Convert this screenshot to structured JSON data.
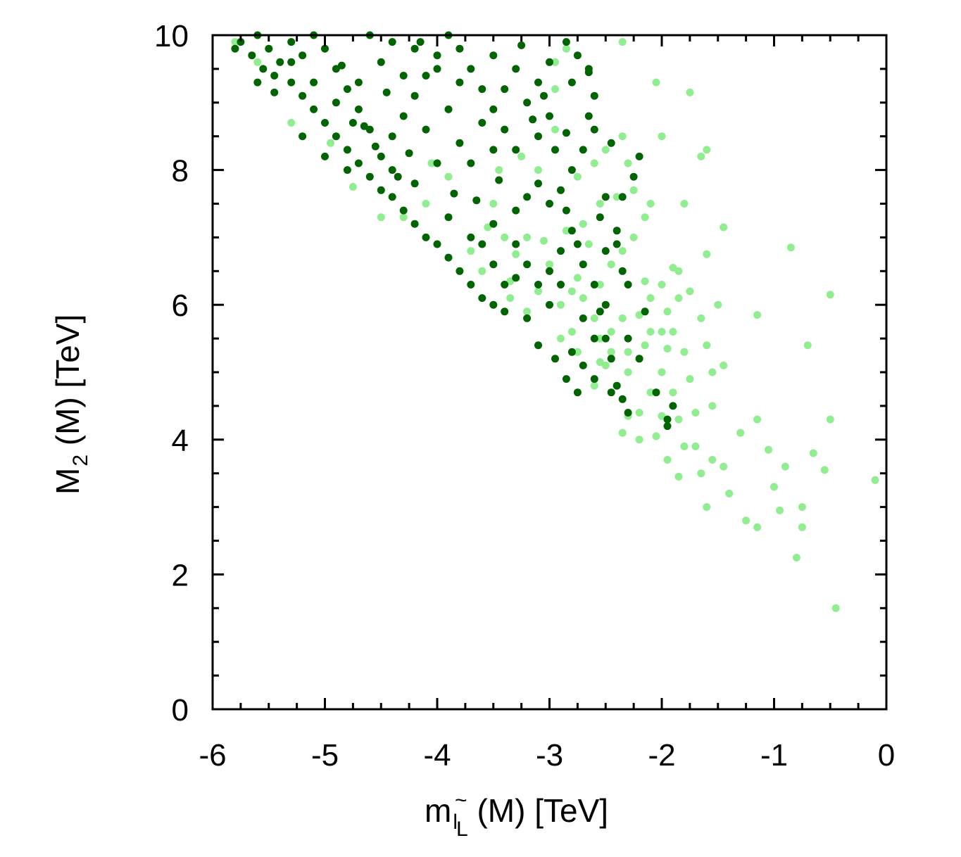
{
  "chart_data": {
    "type": "scatter",
    "title": "",
    "xlabel": {
      "main": "m",
      "sub": "l",
      "tilde": "~",
      "subsub": "L",
      "suffix": " (M)  [TeV]"
    },
    "ylabel": {
      "main": "M",
      "sub": "2",
      "suffix": " (M)  [TeV]"
    },
    "xlim": [
      -6,
      0
    ],
    "ylim": [
      0,
      10
    ],
    "x_ticks": [
      -6,
      -5,
      -4,
      -3,
      -2,
      -1,
      0
    ],
    "x_tick_labels": [
      "-6",
      "-5",
      "-4",
      "-3",
      "-2",
      "-1",
      "0"
    ],
    "y_ticks": [
      0,
      2,
      4,
      6,
      8,
      10
    ],
    "y_tick_labels": [
      "0",
      "2",
      "4",
      "6",
      "8",
      "10"
    ],
    "grid": false,
    "series": [
      {
        "color": "#90ee90",
        "points": [
          [
            -0.45,
            1.5
          ],
          [
            -0.8,
            2.25
          ],
          [
            -0.75,
            2.7
          ],
          [
            -0.75,
            3.0
          ],
          [
            -0.95,
            2.95
          ],
          [
            -1.0,
            3.3
          ],
          [
            -0.9,
            3.6
          ],
          [
            -0.55,
            3.55
          ],
          [
            -0.65,
            3.8
          ],
          [
            -0.1,
            3.4
          ],
          [
            -0.5,
            4.3
          ],
          [
            -0.7,
            5.4
          ],
          [
            -0.85,
            6.85
          ],
          [
            -0.5,
            6.15
          ],
          [
            -1.15,
            5.85
          ],
          [
            -1.15,
            4.3
          ],
          [
            -1.3,
            4.1
          ],
          [
            -1.05,
            3.85
          ],
          [
            -1.15,
            2.7
          ],
          [
            -1.25,
            2.8
          ],
          [
            -1.4,
            3.2
          ],
          [
            -1.45,
            3.6
          ],
          [
            -1.55,
            3.7
          ],
          [
            -1.65,
            3.5
          ],
          [
            -1.6,
            3.0
          ],
          [
            -1.7,
            3.9
          ],
          [
            -1.8,
            3.9
          ],
          [
            -1.55,
            4.5
          ],
          [
            -1.7,
            4.4
          ],
          [
            -1.55,
            5.0
          ],
          [
            -1.45,
            5.1
          ],
          [
            -1.6,
            5.4
          ],
          [
            -1.65,
            5.8
          ],
          [
            -1.5,
            6.0
          ],
          [
            -1.6,
            6.75
          ],
          [
            -1.45,
            7.15
          ],
          [
            -1.75,
            6.2
          ],
          [
            -1.85,
            6.5
          ],
          [
            -1.95,
            5.9
          ],
          [
            -1.85,
            6.1
          ],
          [
            -2.0,
            6.3
          ],
          [
            -2.1,
            6.1
          ],
          [
            -2.0,
            5.6
          ],
          [
            -2.15,
            5.4
          ],
          [
            -2.2,
            5.2
          ],
          [
            -2.0,
            5.0
          ],
          [
            -2.1,
            4.7
          ],
          [
            -2.2,
            4.4
          ],
          [
            -1.9,
            4.7
          ],
          [
            -1.85,
            4.3
          ],
          [
            -2.0,
            4.35
          ],
          [
            -2.05,
            4.05
          ],
          [
            -2.2,
            4.0
          ],
          [
            -2.3,
            4.35
          ],
          [
            -2.35,
            4.1
          ],
          [
            -1.95,
            3.7
          ],
          [
            -1.85,
            3.45
          ],
          [
            -1.75,
            4.9
          ],
          [
            -1.8,
            5.3
          ],
          [
            -2.3,
            5.0
          ],
          [
            -2.4,
            4.8
          ],
          [
            -2.5,
            5.1
          ],
          [
            -2.55,
            5.5
          ],
          [
            -2.6,
            5.8
          ],
          [
            -2.7,
            6.1
          ],
          [
            -2.75,
            6.4
          ],
          [
            -2.8,
            6.2
          ],
          [
            -2.9,
            6.0
          ],
          [
            -2.65,
            6.9
          ],
          [
            -2.55,
            6.3
          ],
          [
            -2.45,
            6.6
          ],
          [
            -2.35,
            6.8
          ],
          [
            -2.25,
            7.0
          ],
          [
            -2.15,
            7.3
          ],
          [
            -2.1,
            7.5
          ],
          [
            -2.25,
            7.7
          ],
          [
            -2.4,
            7.6
          ],
          [
            -2.55,
            7.5
          ],
          [
            -2.7,
            7.2
          ],
          [
            -2.85,
            7.1
          ],
          [
            -2.75,
            7.9
          ],
          [
            -2.6,
            8.1
          ],
          [
            -2.5,
            8.3
          ],
          [
            -2.35,
            8.5
          ],
          [
            -2.0,
            8.5
          ],
          [
            -1.8,
            7.5
          ],
          [
            -1.65,
            8.2
          ],
          [
            -1.6,
            8.3
          ],
          [
            -1.75,
            9.15
          ],
          [
            -2.05,
            9.3
          ],
          [
            -2.3,
            8.1
          ],
          [
            -2.5,
            6.0
          ],
          [
            -2.45,
            5.6
          ],
          [
            -2.3,
            5.3
          ],
          [
            -2.1,
            5.6
          ],
          [
            -1.9,
            5.6
          ],
          [
            -2.35,
            9.9
          ],
          [
            -2.95,
            8.6
          ],
          [
            -3.0,
            6.6
          ],
          [
            -3.1,
            6.2
          ],
          [
            -3.2,
            5.9
          ],
          [
            -3.35,
            6.35
          ],
          [
            -3.6,
            6.5
          ],
          [
            -3.7,
            6.8
          ],
          [
            -3.5,
            7.5
          ],
          [
            -3.45,
            8.0
          ],
          [
            -3.25,
            8.2
          ],
          [
            -3.1,
            8.0
          ],
          [
            -3.4,
            7.0
          ],
          [
            -3.2,
            7.0
          ],
          [
            -4.1,
            7.5
          ],
          [
            -4.3,
            7.3
          ],
          [
            -4.5,
            7.3
          ],
          [
            -4.75,
            7.75
          ],
          [
            -4.95,
            8.4
          ],
          [
            -5.3,
            8.7
          ],
          [
            -5.6,
            9.6
          ],
          [
            -5.8,
            9.9
          ],
          [
            -2.85,
            9.8
          ],
          [
            -2.95,
            9.2
          ],
          [
            -3.35,
            6.1
          ],
          [
            -2.9,
            5.5
          ],
          [
            -2.75,
            5.3
          ],
          [
            -2.6,
            4.8
          ],
          [
            -2.55,
            5.15
          ],
          [
            -2.8,
            5.6
          ],
          [
            -2.45,
            5.3
          ],
          [
            -2.35,
            5.8
          ],
          [
            -2.15,
            6.35
          ],
          [
            -1.9,
            6.55
          ],
          [
            -2.2,
            5.85
          ],
          [
            -1.95,
            5.35
          ],
          [
            -3.05,
            6.95
          ],
          [
            -3.3,
            6.75
          ],
          [
            -3.55,
            7.15
          ],
          [
            -4.05,
            8.1
          ],
          [
            -3.9,
            7.9
          ],
          [
            -2.95,
            9.6
          ]
        ]
      },
      {
        "color": "#006400",
        "points": [
          [
            -5.75,
            9.9
          ],
          [
            -5.65,
            9.7
          ],
          [
            -5.55,
            9.5
          ],
          [
            -5.45,
            9.4
          ],
          [
            -5.3,
            9.3
          ],
          [
            -5.2,
            9.1
          ],
          [
            -5.1,
            8.9
          ],
          [
            -5.0,
            8.7
          ],
          [
            -4.9,
            8.5
          ],
          [
            -4.8,
            8.3
          ],
          [
            -4.7,
            8.1
          ],
          [
            -4.6,
            7.9
          ],
          [
            -4.5,
            7.7
          ],
          [
            -4.4,
            7.6
          ],
          [
            -4.3,
            7.4
          ],
          [
            -4.2,
            7.2
          ],
          [
            -4.1,
            7.0
          ],
          [
            -4.0,
            6.9
          ],
          [
            -3.9,
            6.7
          ],
          [
            -3.8,
            6.5
          ],
          [
            -3.7,
            6.3
          ],
          [
            -3.6,
            6.1
          ],
          [
            -3.5,
            6.0
          ],
          [
            -3.4,
            5.9
          ],
          [
            -3.3,
            6.4
          ],
          [
            -3.2,
            6.6
          ],
          [
            -3.1,
            6.3
          ],
          [
            -3.0,
            6.5
          ],
          [
            -2.9,
            6.8
          ],
          [
            -2.8,
            7.1
          ],
          [
            -2.7,
            6.6
          ],
          [
            -2.6,
            6.3
          ],
          [
            -2.55,
            5.9
          ],
          [
            -2.5,
            5.5
          ],
          [
            -2.45,
            5.2
          ],
          [
            -2.4,
            4.8
          ],
          [
            -2.35,
            4.6
          ],
          [
            -2.45,
            4.7
          ],
          [
            -2.6,
            4.9
          ],
          [
            -2.7,
            5.1
          ],
          [
            -2.8,
            5.3
          ],
          [
            -2.75,
            4.7
          ],
          [
            -2.95,
            5.2
          ],
          [
            -2.85,
            4.9
          ],
          [
            -3.1,
            5.4
          ],
          [
            -3.2,
            5.8
          ],
          [
            -2.3,
            4.4
          ],
          [
            -2.05,
            4.7
          ],
          [
            -1.95,
            4.3
          ],
          [
            -1.95,
            4.2
          ],
          [
            -1.9,
            4.5
          ],
          [
            -2.2,
            5.2
          ],
          [
            -2.3,
            5.5
          ],
          [
            -2.15,
            5.9
          ],
          [
            -2.3,
            6.3
          ],
          [
            -2.4,
            6.9
          ],
          [
            -2.55,
            7.3
          ],
          [
            -2.35,
            7.6
          ],
          [
            -2.25,
            7.9
          ],
          [
            -2.2,
            8.2
          ],
          [
            -2.45,
            8.4
          ],
          [
            -2.6,
            8.6
          ],
          [
            -2.7,
            8.3
          ],
          [
            -2.8,
            8.0
          ],
          [
            -2.9,
            7.7
          ],
          [
            -3.0,
            7.5
          ],
          [
            -2.65,
            8.8
          ],
          [
            -2.6,
            9.1
          ],
          [
            -2.8,
            9.3
          ],
          [
            -2.65,
            9.5
          ],
          [
            -2.75,
            9.7
          ],
          [
            -2.85,
            9.9
          ],
          [
            -3.0,
            9.6
          ],
          [
            -3.1,
            9.3
          ],
          [
            -3.2,
            9.0
          ],
          [
            -3.0,
            8.8
          ],
          [
            -3.1,
            8.5
          ],
          [
            -3.3,
            8.3
          ],
          [
            -3.4,
            8.6
          ],
          [
            -3.5,
            8.9
          ],
          [
            -3.6,
            9.2
          ],
          [
            -3.7,
            9.5
          ],
          [
            -3.8,
            9.8
          ],
          [
            -3.9,
            10.0
          ],
          [
            -4.0,
            9.7
          ],
          [
            -4.1,
            9.4
          ],
          [
            -4.2,
            9.1
          ],
          [
            -4.3,
            8.8
          ],
          [
            -4.4,
            8.5
          ],
          [
            -4.5,
            8.2
          ],
          [
            -4.6,
            8.6
          ],
          [
            -4.7,
            8.9
          ],
          [
            -4.8,
            9.2
          ],
          [
            -4.9,
            9.5
          ],
          [
            -5.0,
            9.8
          ],
          [
            -5.1,
            10.0
          ],
          [
            -5.2,
            9.7
          ],
          [
            -5.3,
            9.9
          ],
          [
            -5.4,
            9.6
          ],
          [
            -5.5,
            9.8
          ],
          [
            -5.6,
            10.0
          ],
          [
            -4.6,
            10.0
          ],
          [
            -4.4,
            9.9
          ],
          [
            -4.2,
            9.8
          ],
          [
            -4.0,
            9.5
          ],
          [
            -3.8,
            9.3
          ],
          [
            -3.6,
            8.7
          ],
          [
            -3.8,
            8.4
          ],
          [
            -4.0,
            8.1
          ],
          [
            -4.2,
            7.8
          ],
          [
            -4.4,
            8.0
          ],
          [
            -3.5,
            7.2
          ],
          [
            -3.7,
            7.0
          ],
          [
            -3.9,
            7.3
          ],
          [
            -3.3,
            7.4
          ],
          [
            -3.1,
            7.8
          ],
          [
            -3.3,
            6.9
          ],
          [
            -3.5,
            6.6
          ],
          [
            -3.6,
            6.9
          ],
          [
            -3.4,
            6.3
          ],
          [
            -3.0,
            6.0
          ],
          [
            -2.9,
            6.3
          ],
          [
            -2.7,
            5.8
          ],
          [
            -2.6,
            5.5
          ],
          [
            -2.5,
            6.0
          ],
          [
            -3.3,
            9.5
          ],
          [
            -3.5,
            9.7
          ],
          [
            -4.8,
            8.0
          ],
          [
            -5.0,
            8.2
          ],
          [
            -5.2,
            8.5
          ],
          [
            -4.3,
            9.4
          ],
          [
            -4.5,
            9.6
          ],
          [
            -4.7,
            9.3
          ],
          [
            -4.9,
            9.0
          ],
          [
            -5.1,
            9.3
          ],
          [
            -5.3,
            9.6
          ],
          [
            -5.6,
            9.3
          ],
          [
            -5.8,
            9.8
          ],
          [
            -4.1,
            8.6
          ],
          [
            -3.9,
            8.9
          ],
          [
            -3.7,
            8.1
          ],
          [
            -3.5,
            8.3
          ],
          [
            -3.2,
            7.6
          ],
          [
            -2.85,
            7.4
          ],
          [
            -2.95,
            8.3
          ],
          [
            -2.5,
            7.6
          ],
          [
            -2.75,
            6.9
          ],
          [
            -2.4,
            7.1
          ],
          [
            -2.35,
            6.5
          ],
          [
            -2.5,
            6.8
          ],
          [
            -4.65,
            8.65
          ],
          [
            -4.25,
            8.25
          ],
          [
            -3.85,
            7.65
          ],
          [
            -4.45,
            9.15
          ],
          [
            -4.85,
            9.55
          ],
          [
            -5.45,
            9.15
          ],
          [
            -3.25,
            9.85
          ],
          [
            -3.05,
            9.1
          ],
          [
            -3.15,
            8.75
          ],
          [
            -2.85,
            8.55
          ],
          [
            -3.45,
            7.85
          ],
          [
            -3.65,
            7.55
          ],
          [
            -2.65,
            9.45
          ],
          [
            -3.4,
            9.2
          ],
          [
            -4.15,
            9.9
          ],
          [
            -4.35,
            7.9
          ],
          [
            -4.55,
            8.35
          ],
          [
            -4.75,
            8.7
          ]
        ]
      }
    ]
  }
}
